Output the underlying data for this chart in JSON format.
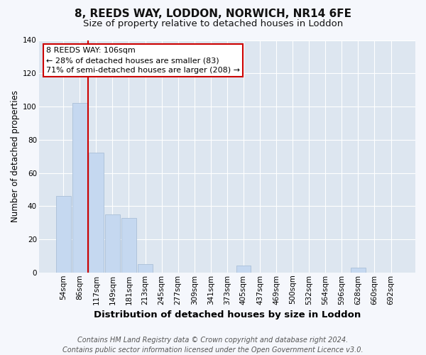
{
  "title": "8, REEDS WAY, LODDON, NORWICH, NR14 6FE",
  "subtitle": "Size of property relative to detached houses in Loddon",
  "xlabel": "Distribution of detached houses by size in Loddon",
  "ylabel": "Number of detached properties",
  "categories": [
    "54sqm",
    "86sqm",
    "117sqm",
    "149sqm",
    "181sqm",
    "213sqm",
    "245sqm",
    "277sqm",
    "309sqm",
    "341sqm",
    "373sqm",
    "405sqm",
    "437sqm",
    "469sqm",
    "500sqm",
    "532sqm",
    "564sqm",
    "596sqm",
    "628sqm",
    "660sqm",
    "692sqm"
  ],
  "values": [
    46,
    102,
    72,
    35,
    33,
    5,
    0,
    0,
    0,
    0,
    0,
    4,
    0,
    0,
    0,
    0,
    0,
    0,
    3,
    0,
    0
  ],
  "bar_color": "#c5d8f0",
  "bar_edge_color": "#aabfd8",
  "vline_color": "#cc0000",
  "vline_x": 1.5,
  "annotation_line1": "8 REEDS WAY: 106sqm",
  "annotation_line2": "← 28% of detached houses are smaller (83)",
  "annotation_line3": "71% of semi-detached houses are larger (208) →",
  "annotation_box_color": "#ffffff",
  "annotation_box_edge": "#cc0000",
  "ylim": [
    0,
    140
  ],
  "yticks": [
    0,
    20,
    40,
    60,
    80,
    100,
    120,
    140
  ],
  "plot_bg_color": "#dde6f0",
  "fig_bg_color": "#f5f7fc",
  "grid_color": "#ffffff",
  "footer": "Contains HM Land Registry data © Crown copyright and database right 2024.\nContains public sector information licensed under the Open Government Licence v3.0.",
  "title_fontsize": 11,
  "subtitle_fontsize": 9.5,
  "xlabel_fontsize": 9.5,
  "ylabel_fontsize": 8.5,
  "tick_fontsize": 7.5,
  "annot_fontsize": 8,
  "footer_fontsize": 7
}
